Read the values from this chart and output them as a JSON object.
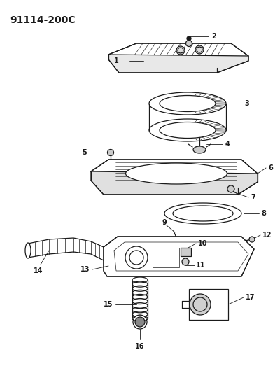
{
  "title": "91114-200C",
  "bg_color": "#ffffff",
  "line_color": "#1a1a1a",
  "title_fontsize": 10,
  "label_fontsize": 7,
  "fig_width": 3.93,
  "fig_height": 5.33,
  "dpi": 100
}
